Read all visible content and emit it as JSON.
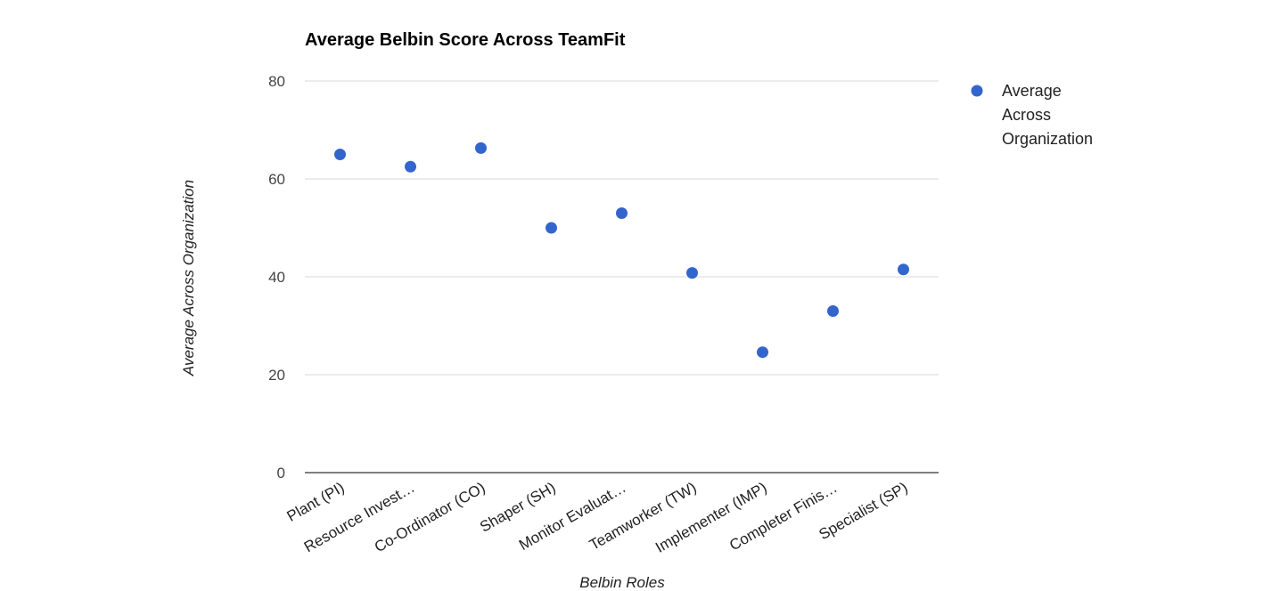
{
  "chart_data": {
    "type": "scatter",
    "title": "Average Belbin Score Across TeamFit",
    "xlabel": "Belbin Roles",
    "ylabel": "Average Across Organization",
    "categories": [
      "Plant (PI)",
      "Resource Invest…",
      "Co-Ordinator (CO)",
      "Shaper (SH)",
      "Monitor Evaluat…",
      "Teamworker (TW)",
      "Implementer (IMP)",
      "Completer Finis…",
      "Specialist (SP)"
    ],
    "series": [
      {
        "name": "Average Across Organization",
        "legend_lines": [
          "Average",
          "Across",
          "Organization"
        ],
        "color": "#3366cc",
        "values": [
          65,
          62.5,
          66.3,
          50,
          53,
          40.8,
          24.6,
          33,
          41.5
        ]
      }
    ],
    "ylim": [
      0,
      80
    ],
    "yticks": [
      0,
      20,
      40,
      60,
      80
    ],
    "grid": true,
    "legend_position": "right"
  }
}
